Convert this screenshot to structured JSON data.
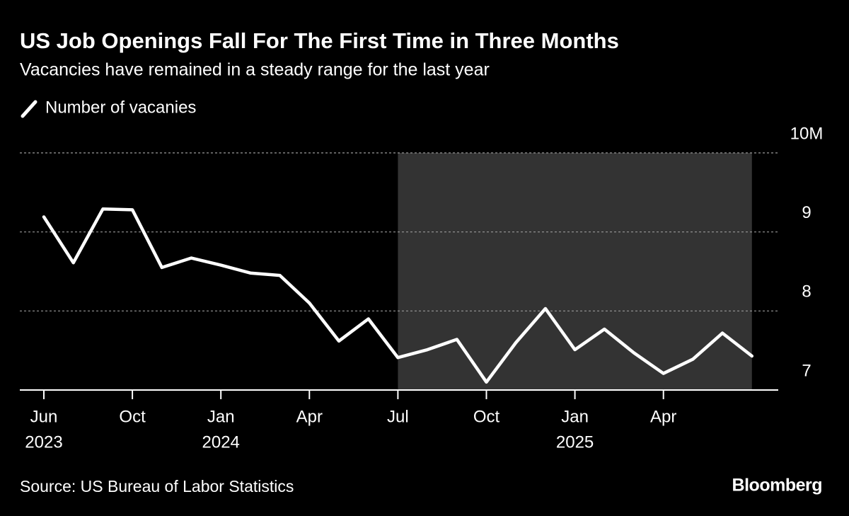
{
  "chart_data": {
    "type": "line",
    "title": "US Job Openings Fall For The First Time in Three Months",
    "subtitle": "Vacancies have remained in a steady range for the last year",
    "source": "Source: US Bureau of Labor Statistics",
    "brand": "Bloomberg",
    "categories": [
      "Jun",
      null,
      null,
      "Oct",
      null,
      null,
      "Jan",
      null,
      null,
      "Apr",
      null,
      null,
      "Jul",
      null,
      null,
      "Oct",
      null,
      null,
      "Jan",
      null,
      null,
      "Apr",
      null,
      null,
      null
    ],
    "years": [
      "2023",
      null,
      null,
      null,
      null,
      null,
      "2024",
      null,
      null,
      null,
      null,
      null,
      null,
      null,
      null,
      null,
      null,
      null,
      "2025",
      null,
      null,
      null,
      null,
      null,
      null
    ],
    "series": [
      {
        "name": "Number of vacanies",
        "color": "#ffffff",
        "values": [
          9.19,
          8.61,
          9.29,
          9.28,
          8.55,
          8.67,
          8.58,
          8.48,
          8.45,
          8.1,
          7.62,
          7.9,
          7.41,
          7.51,
          7.64,
          7.1,
          7.6,
          8.03,
          7.51,
          7.77,
          7.47,
          7.21,
          7.39,
          7.72,
          7.43
        ]
      }
    ],
    "ylim": [
      7,
      10
    ],
    "yticks": [
      7,
      8,
      9,
      {
        "value": 10,
        "label": "10M"
      }
    ],
    "grid": true,
    "shade_color": "#333333"
  }
}
